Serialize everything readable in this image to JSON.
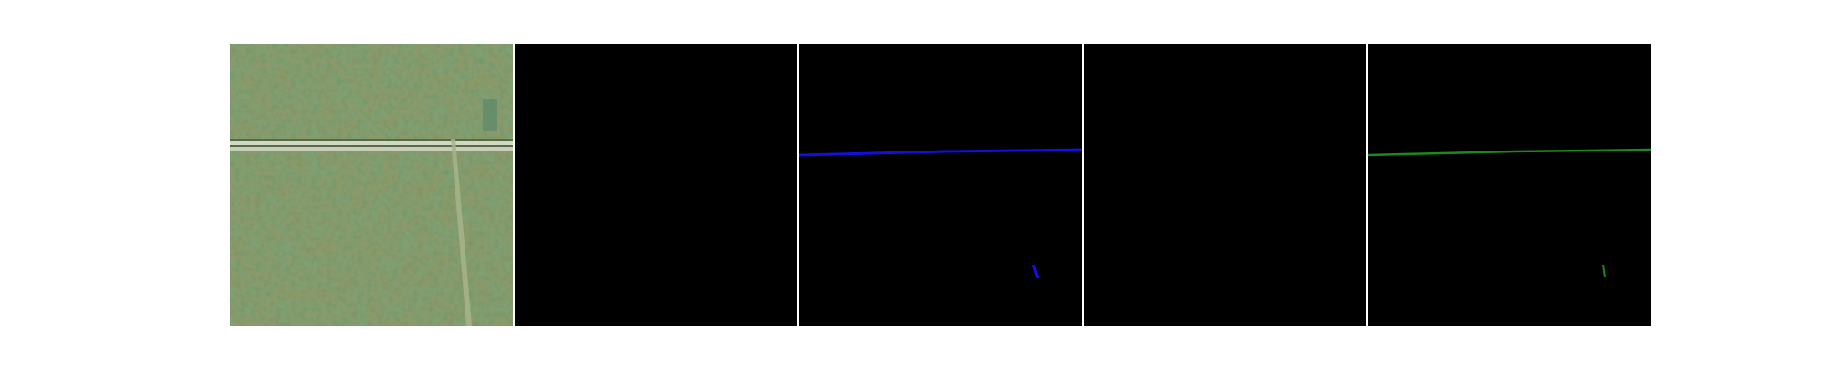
{
  "figure": {
    "panels": [
      {
        "id": "aerial-image",
        "kind": "satellite-photo"
      },
      {
        "id": "empty-mask-a",
        "kind": "mask",
        "content": "empty"
      },
      {
        "id": "road-mask-blue",
        "kind": "mask",
        "color": "#1010e0"
      },
      {
        "id": "empty-mask-b",
        "kind": "mask",
        "content": "empty"
      },
      {
        "id": "road-mask-green",
        "kind": "mask",
        "color": "#1a8a1a"
      }
    ],
    "colors": {
      "background": "#ffffff",
      "mask_background": "#000000",
      "vegetation_dark": "#2f5a2a",
      "vegetation_light": "#8f9a6a",
      "road": "#cfd2c2"
    }
  }
}
